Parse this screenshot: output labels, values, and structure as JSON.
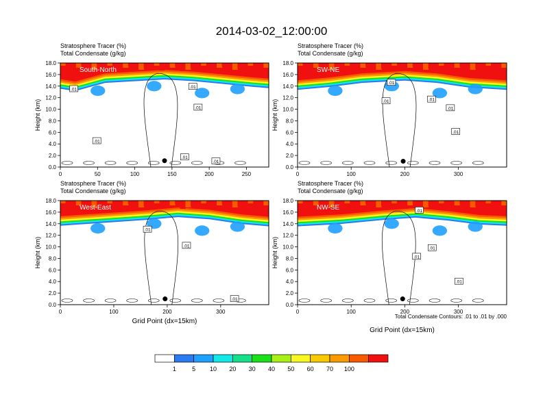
{
  "title": "2014-03-02_12:00:00",
  "panel_header": {
    "line1": "Stratosphere Tracer   (%)",
    "line2": "Total Condensate   (g/kg)"
  },
  "ylabel": "Height (km)",
  "xlabel": "Grid Point (dx=15km)",
  "footnote": "Total Condensate Contours: .01 to .01 by .000",
  "colors": [
    "#ffffff",
    "#2b7bf0",
    "#1fa0ff",
    "#13e8e8",
    "#14e08a",
    "#19e019",
    "#a8f015",
    "#f8f820",
    "#f8c800",
    "#f89a00",
    "#f85a00",
    "#f01010"
  ],
  "chart_data": [
    {
      "type": "heatmap",
      "name": "South-North",
      "xlim": [
        0,
        280
      ],
      "ylim": [
        0,
        18
      ],
      "xticks": [
        0,
        50,
        100,
        150,
        200,
        250
      ],
      "yticks": [
        0.0,
        2.0,
        4.0,
        6.0,
        8.0,
        10.0,
        12.0,
        14.0,
        16.0,
        18.0
      ],
      "ytick_labels": [
        "0.0",
        "2.0",
        "4.0",
        "6.0",
        "8.0",
        "10.0",
        "12.0",
        "14.0",
        "16.0",
        "18.0"
      ],
      "tropopause": [
        [
          0,
          15.2
        ],
        [
          20,
          14.8
        ],
        [
          40,
          15.5
        ],
        [
          60,
          16.2
        ],
        [
          100,
          16.5
        ],
        [
          140,
          16.8
        ],
        [
          180,
          16.5
        ],
        [
          220,
          16.0
        ],
        [
          260,
          15.5
        ],
        [
          280,
          15.3
        ]
      ],
      "contour_labels": [
        {
          "x": 18,
          "y": 13.5,
          "text": ".01"
        },
        {
          "x": 49,
          "y": 4.5,
          "text": ".01"
        },
        {
          "x": 178,
          "y": 13.9,
          "text": ".01"
        },
        {
          "x": 185,
          "y": 10.3,
          "text": ".01"
        },
        {
          "x": 167,
          "y": 1.7,
          "text": ".01"
        },
        {
          "x": 209,
          "y": 1.0,
          "text": ".01"
        }
      ],
      "marker": {
        "x": 140,
        "y": 1.1
      }
    },
    {
      "type": "heatmap",
      "name": "SW-NE",
      "xlim": [
        0,
        390
      ],
      "ylim": [
        0,
        18
      ],
      "xticks": [
        0,
        100,
        200,
        300
      ],
      "yticks": [
        0.0,
        2.0,
        4.0,
        6.0,
        8.0,
        10.0,
        12.0,
        14.0,
        16.0,
        18.0
      ],
      "ytick_labels": [
        "0.0",
        "2.0",
        "4.0",
        "6.0",
        "8.0",
        "10.0",
        "12.0",
        "14.0",
        "16.0",
        "18.0"
      ],
      "tropopause": [
        [
          0,
          15.0
        ],
        [
          60,
          15.5
        ],
        [
          120,
          16.2
        ],
        [
          200,
          16.6
        ],
        [
          260,
          16.2
        ],
        [
          320,
          15.4
        ],
        [
          390,
          15.0
        ]
      ],
      "contour_labels": [
        {
          "x": 175,
          "y": 14.6,
          "text": ".01"
        },
        {
          "x": 165,
          "y": 11.4,
          "text": ".01"
        },
        {
          "x": 250,
          "y": 11.7,
          "text": ".01"
        },
        {
          "x": 285,
          "y": 10.2,
          "text": ".01"
        },
        {
          "x": 295,
          "y": 6.1,
          "text": ".01"
        }
      ],
      "marker": {
        "x": 197,
        "y": 1.0
      }
    },
    {
      "type": "heatmap",
      "name": "West-East",
      "xlim": [
        0,
        390
      ],
      "ylim": [
        0,
        18
      ],
      "xticks": [
        0,
        100,
        200,
        300
      ],
      "yticks": [
        0.0,
        2.0,
        4.0,
        6.0,
        8.0,
        10.0,
        12.0,
        14.0,
        16.0,
        18.0
      ],
      "ytick_labels": [
        "0.0",
        "2.0",
        "4.0",
        "6.0",
        "8.0",
        "10.0",
        "12.0",
        "14.0",
        "16.0",
        "18.0"
      ],
      "tropopause": [
        [
          0,
          15.3
        ],
        [
          80,
          15.8
        ],
        [
          160,
          16.3
        ],
        [
          220,
          16.8
        ],
        [
          280,
          16.4
        ],
        [
          340,
          15.6
        ],
        [
          390,
          15.2
        ]
      ],
      "contour_labels": [
        {
          "x": 163,
          "y": 13.0,
          "text": ".01"
        },
        {
          "x": 236,
          "y": 10.2,
          "text": ".01"
        },
        {
          "x": 326,
          "y": 1.0,
          "text": ".01"
        }
      ],
      "marker": {
        "x": 196,
        "y": 1.0
      }
    },
    {
      "type": "heatmap",
      "name": "NW-SE",
      "xlim": [
        0,
        390
      ],
      "ylim": [
        0,
        18
      ],
      "xticks": [
        0,
        100,
        200,
        300
      ],
      "yticks": [
        0.0,
        2.0,
        4.0,
        6.0,
        8.0,
        10.0,
        12.0,
        14.0,
        16.0,
        18.0
      ],
      "ytick_labels": [
        "0.0",
        "2.0",
        "4.0",
        "6.0",
        "8.0",
        "10.0",
        "12.0",
        "14.0",
        "16.0",
        "18.0"
      ],
      "tropopause": [
        [
          0,
          15.2
        ],
        [
          80,
          15.6
        ],
        [
          160,
          16.3
        ],
        [
          220,
          16.7
        ],
        [
          280,
          16.2
        ],
        [
          340,
          15.5
        ],
        [
          390,
          15.3
        ]
      ],
      "contour_labels": [
        {
          "x": 227,
          "y": 16.3,
          "text": ".01"
        },
        {
          "x": 251,
          "y": 9.8,
          "text": ".01"
        },
        {
          "x": 222,
          "y": 8.3,
          "text": ".01"
        },
        {
          "x": 301,
          "y": 4.0,
          "text": ".01"
        }
      ],
      "marker": {
        "x": 196,
        "y": 1.0
      }
    }
  ],
  "colorbar": {
    "labels": [
      "1",
      "5",
      "10",
      "20",
      "30",
      "40",
      "50",
      "60",
      "70",
      "100"
    ]
  }
}
